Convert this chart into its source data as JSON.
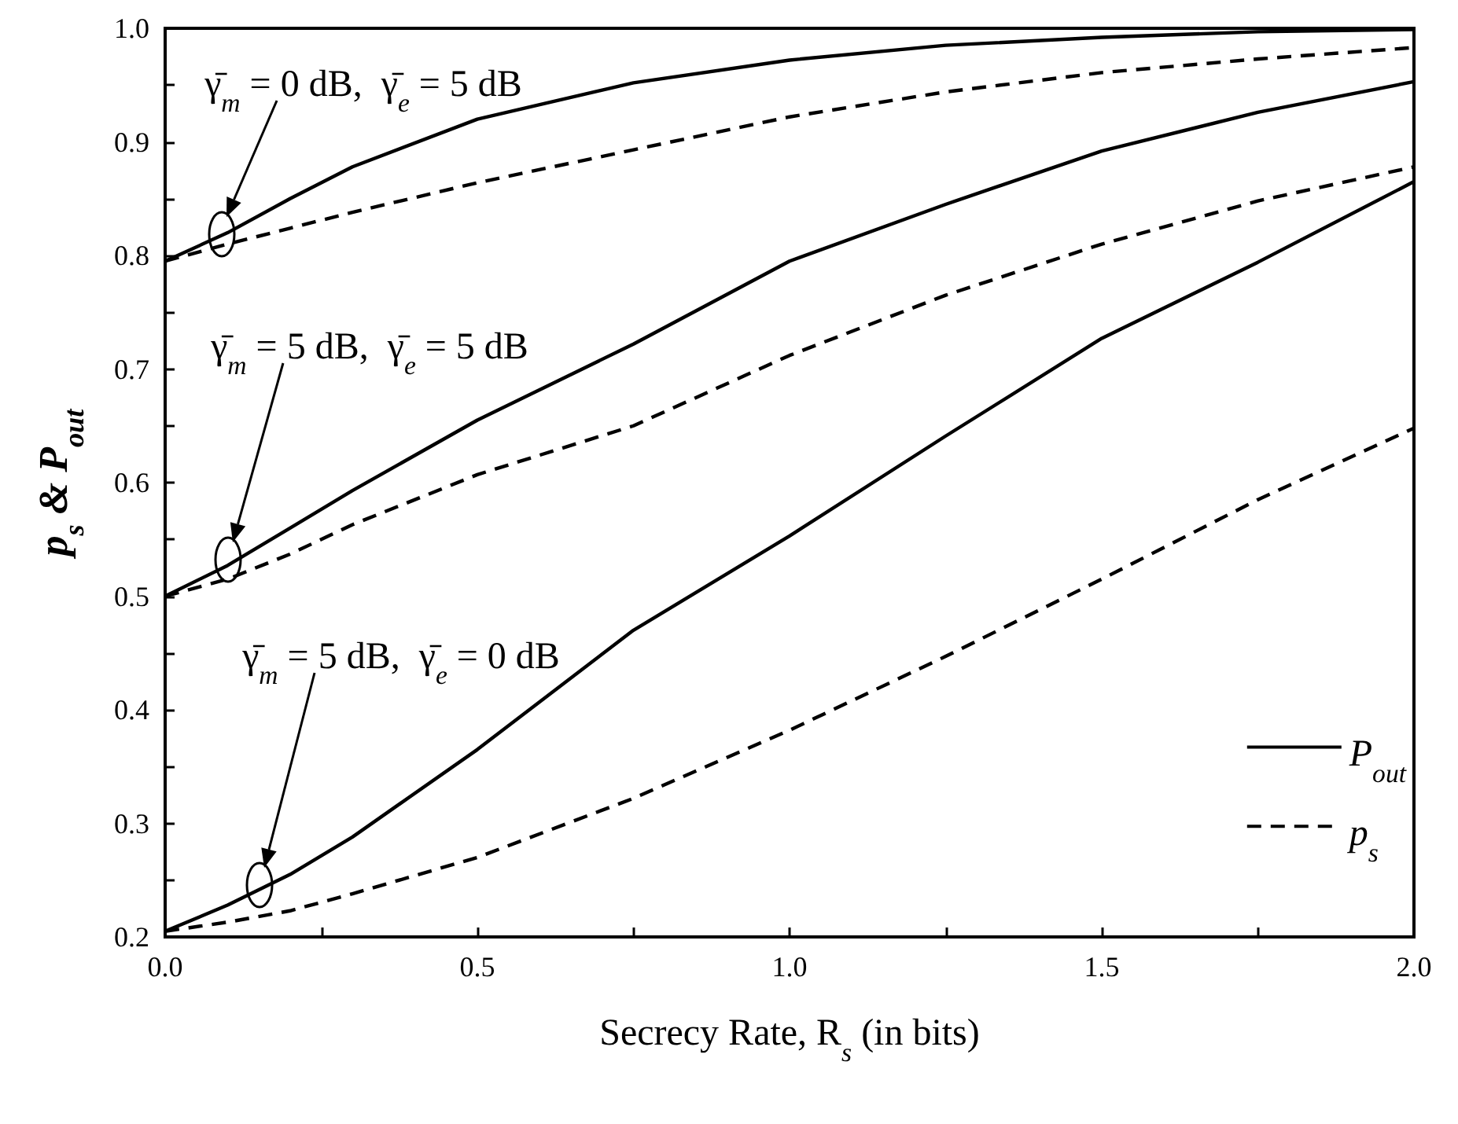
{
  "chart_data": {
    "type": "line",
    "xlabel": "Secrecy Rate, R$_{s}$ (in bits)",
    "ylabel": "p$_{s}$ & P$_{out}$",
    "x": [
      0,
      0.1,
      0.2,
      0.3,
      0.5,
      0.75,
      1.0,
      1.25,
      1.5,
      1.75,
      2.0
    ],
    "series": [
      {
        "name": "P$_{out}$",
        "color": "#000000",
        "line_style": "solid",
        "values": [
          0.795,
          0.82,
          0.85,
          0.878,
          0.92,
          0.952,
          0.972,
          0.985,
          0.992,
          0.997,
          0.999
        ]
      },
      {
        "name": "p$_{s}$",
        "color": "#000000",
        "line_style": "dashed",
        "values": [
          0.795,
          0.81,
          0.824,
          0.838,
          0.864,
          0.893,
          0.922,
          0.944,
          0.961,
          0.973,
          0.983
        ]
      },
      {
        "color": "#000000",
        "line_style": "solid",
        "values": [
          0.5,
          0.527,
          0.56,
          0.593,
          0.655,
          0.722,
          0.795,
          0.845,
          0.892,
          0.926,
          0.953
        ]
      },
      {
        "color": "#000000",
        "line_style": "dashed",
        "values": [
          0.5,
          0.515,
          0.537,
          0.563,
          0.607,
          0.65,
          0.712,
          0.765,
          0.81,
          0.848,
          0.878
        ]
      },
      {
        "color": "#000000",
        "line_style": "solid",
        "values": [
          0.205,
          0.228,
          0.255,
          0.288,
          0.365,
          0.47,
          0.553,
          0.641,
          0.727,
          0.794,
          0.865
        ]
      },
      {
        "color": "#000000",
        "line_style": "dashed",
        "values": [
          0.205,
          0.213,
          0.223,
          0.238,
          0.27,
          0.322,
          0.382,
          0.447,
          0.515,
          0.585,
          0.648
        ]
      }
    ],
    "annotations": [
      "γ̄$_{m}$ = 0 dB,  γ̄$_{e}$ = 5 dB",
      "γ̄$_{m}$ = 5 dB,  γ̄$_{e}$ = 5 dB",
      "γ̄$_{m}$ = 5 dB,  γ̄$_{e}$ = 0 dB"
    ],
    "xlim": [
      0,
      2.0
    ],
    "ylim": [
      0.2,
      1.0
    ],
    "xticks": [
      {
        "value": 0,
        "label": "0.0"
      },
      {
        "value": 0.25,
        "label": null
      },
      0.5,
      {
        "value": 0.75,
        "label": null
      },
      {
        "value": 1.0,
        "label": "1.0"
      },
      {
        "value": 1.25,
        "label": null
      },
      1.5,
      {
        "value": 1.75,
        "label": null
      },
      {
        "value": 2.0,
        "label": "2.0"
      }
    ],
    "yticks": [
      0.2,
      {
        "value": 0.25,
        "label": null
      },
      0.3,
      {
        "value": 0.35,
        "label": null
      },
      0.4,
      {
        "value": 0.45,
        "label": null
      },
      0.5,
      {
        "value": 0.55,
        "label": null
      },
      0.6,
      {
        "value": 0.65,
        "label": null
      },
      0.7,
      {
        "value": 0.75,
        "label": null
      },
      0.8,
      {
        "value": 0.85,
        "label": null
      },
      0.9,
      {
        "value": 0.95,
        "label": null
      },
      {
        "value": 1.0,
        "label": "1.0"
      }
    ],
    "grid": false,
    "legend": "bottom right",
    "marker": "none"
  }
}
